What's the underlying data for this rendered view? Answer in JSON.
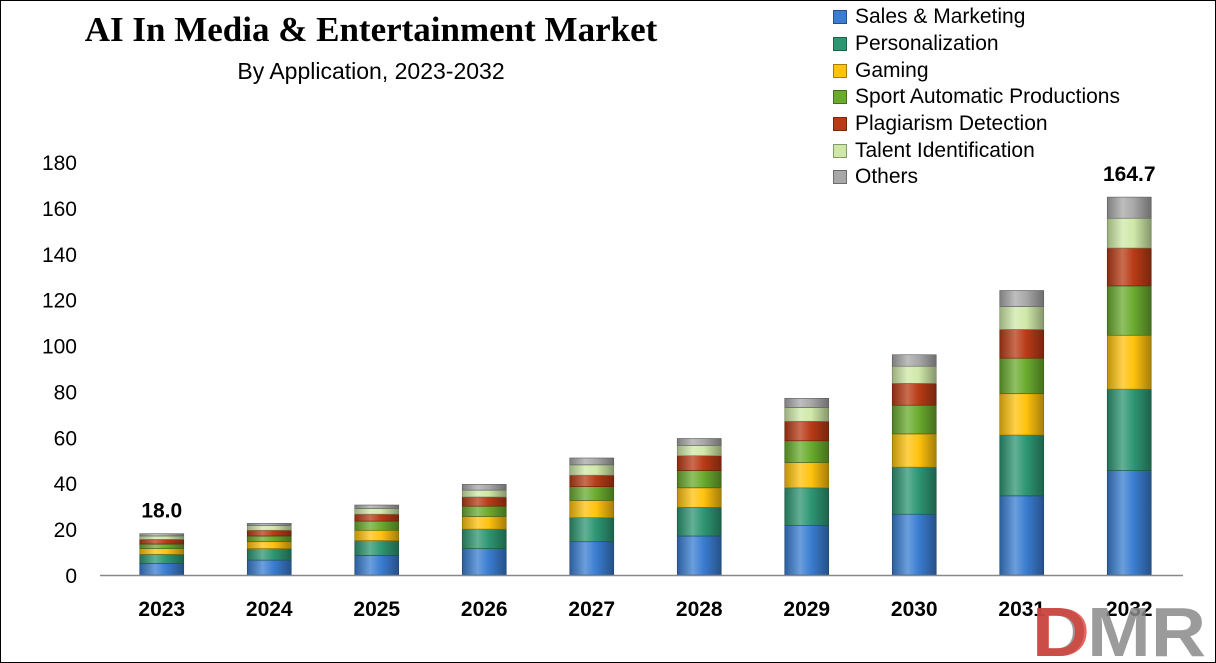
{
  "chart_data": {
    "type": "bar",
    "stacked": true,
    "title": "AI In Media & Entertainment Market",
    "subtitle": "By Application, 2023-2032",
    "categories": [
      "2023",
      "2024",
      "2025",
      "2026",
      "2027",
      "2028",
      "2029",
      "2030",
      "2031",
      "2032"
    ],
    "ylim": [
      0,
      180
    ],
    "yticks": [
      0,
      20,
      40,
      60,
      80,
      100,
      120,
      140,
      160,
      180
    ],
    "grid": false,
    "legend_position": "top-right",
    "series": [
      {
        "name": "Sales & Marketing",
        "color": "#3a7dd1",
        "values": [
          5.0,
          6.5,
          8.5,
          11.5,
          14.5,
          17.0,
          21.5,
          26.5,
          34.5,
          45.5
        ]
      },
      {
        "name": "Personalization",
        "color": "#2e9673",
        "values": [
          4.0,
          5.0,
          6.5,
          8.5,
          10.5,
          12.5,
          16.5,
          20.5,
          26.5,
          35.5
        ]
      },
      {
        "name": "Gaming",
        "color": "#ffc20e",
        "values": [
          2.5,
          3.0,
          4.5,
          5.5,
          7.5,
          8.5,
          11.0,
          14.5,
          18.0,
          23.5
        ]
      },
      {
        "name": "Sport Automatic Productions",
        "color": "#6aab2e",
        "values": [
          2.0,
          2.5,
          4.0,
          4.5,
          6.0,
          7.5,
          9.5,
          12.5,
          15.5,
          21.5
        ]
      },
      {
        "name": "Plagiarism Detection",
        "color": "#b83b16",
        "values": [
          2.0,
          2.5,
          3.0,
          4.0,
          5.0,
          6.5,
          8.5,
          9.5,
          12.5,
          16.5
        ]
      },
      {
        "name": "Talent Identification",
        "color": "#cfe8a8",
        "values": [
          1.5,
          2.0,
          2.5,
          3.0,
          4.5,
          4.5,
          6.0,
          7.5,
          10.0,
          13.0
        ]
      },
      {
        "name": "Others",
        "color": "#a8a8a8",
        "values": [
          1.0,
          1.0,
          1.5,
          2.5,
          3.0,
          3.0,
          4.0,
          5.0,
          7.0,
          9.2
        ]
      }
    ],
    "data_labels": [
      {
        "category": "2023",
        "text": "18.0"
      },
      {
        "category": "2032",
        "text": "164.7"
      }
    ]
  },
  "logo": {
    "text": "DMR"
  }
}
